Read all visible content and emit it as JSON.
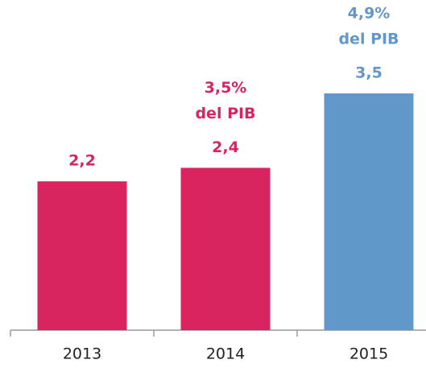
{
  "chart_data": {
    "type": "bar",
    "categories": [
      "2013",
      "2014",
      "2015"
    ],
    "values": [
      2.2,
      2.4,
      3.5
    ],
    "value_labels": [
      "2,2",
      "2,4",
      "3,5"
    ],
    "colors": [
      "#d9245f",
      "#d9245f",
      "#6197cb"
    ],
    "ylim": [
      0,
      5
    ],
    "annotations": [
      {
        "x": "2014",
        "text": [
          "3,5%",
          "del PIB"
        ]
      },
      {
        "x": "2015",
        "text": [
          "4,9%",
          "del PIB"
        ]
      }
    ]
  }
}
